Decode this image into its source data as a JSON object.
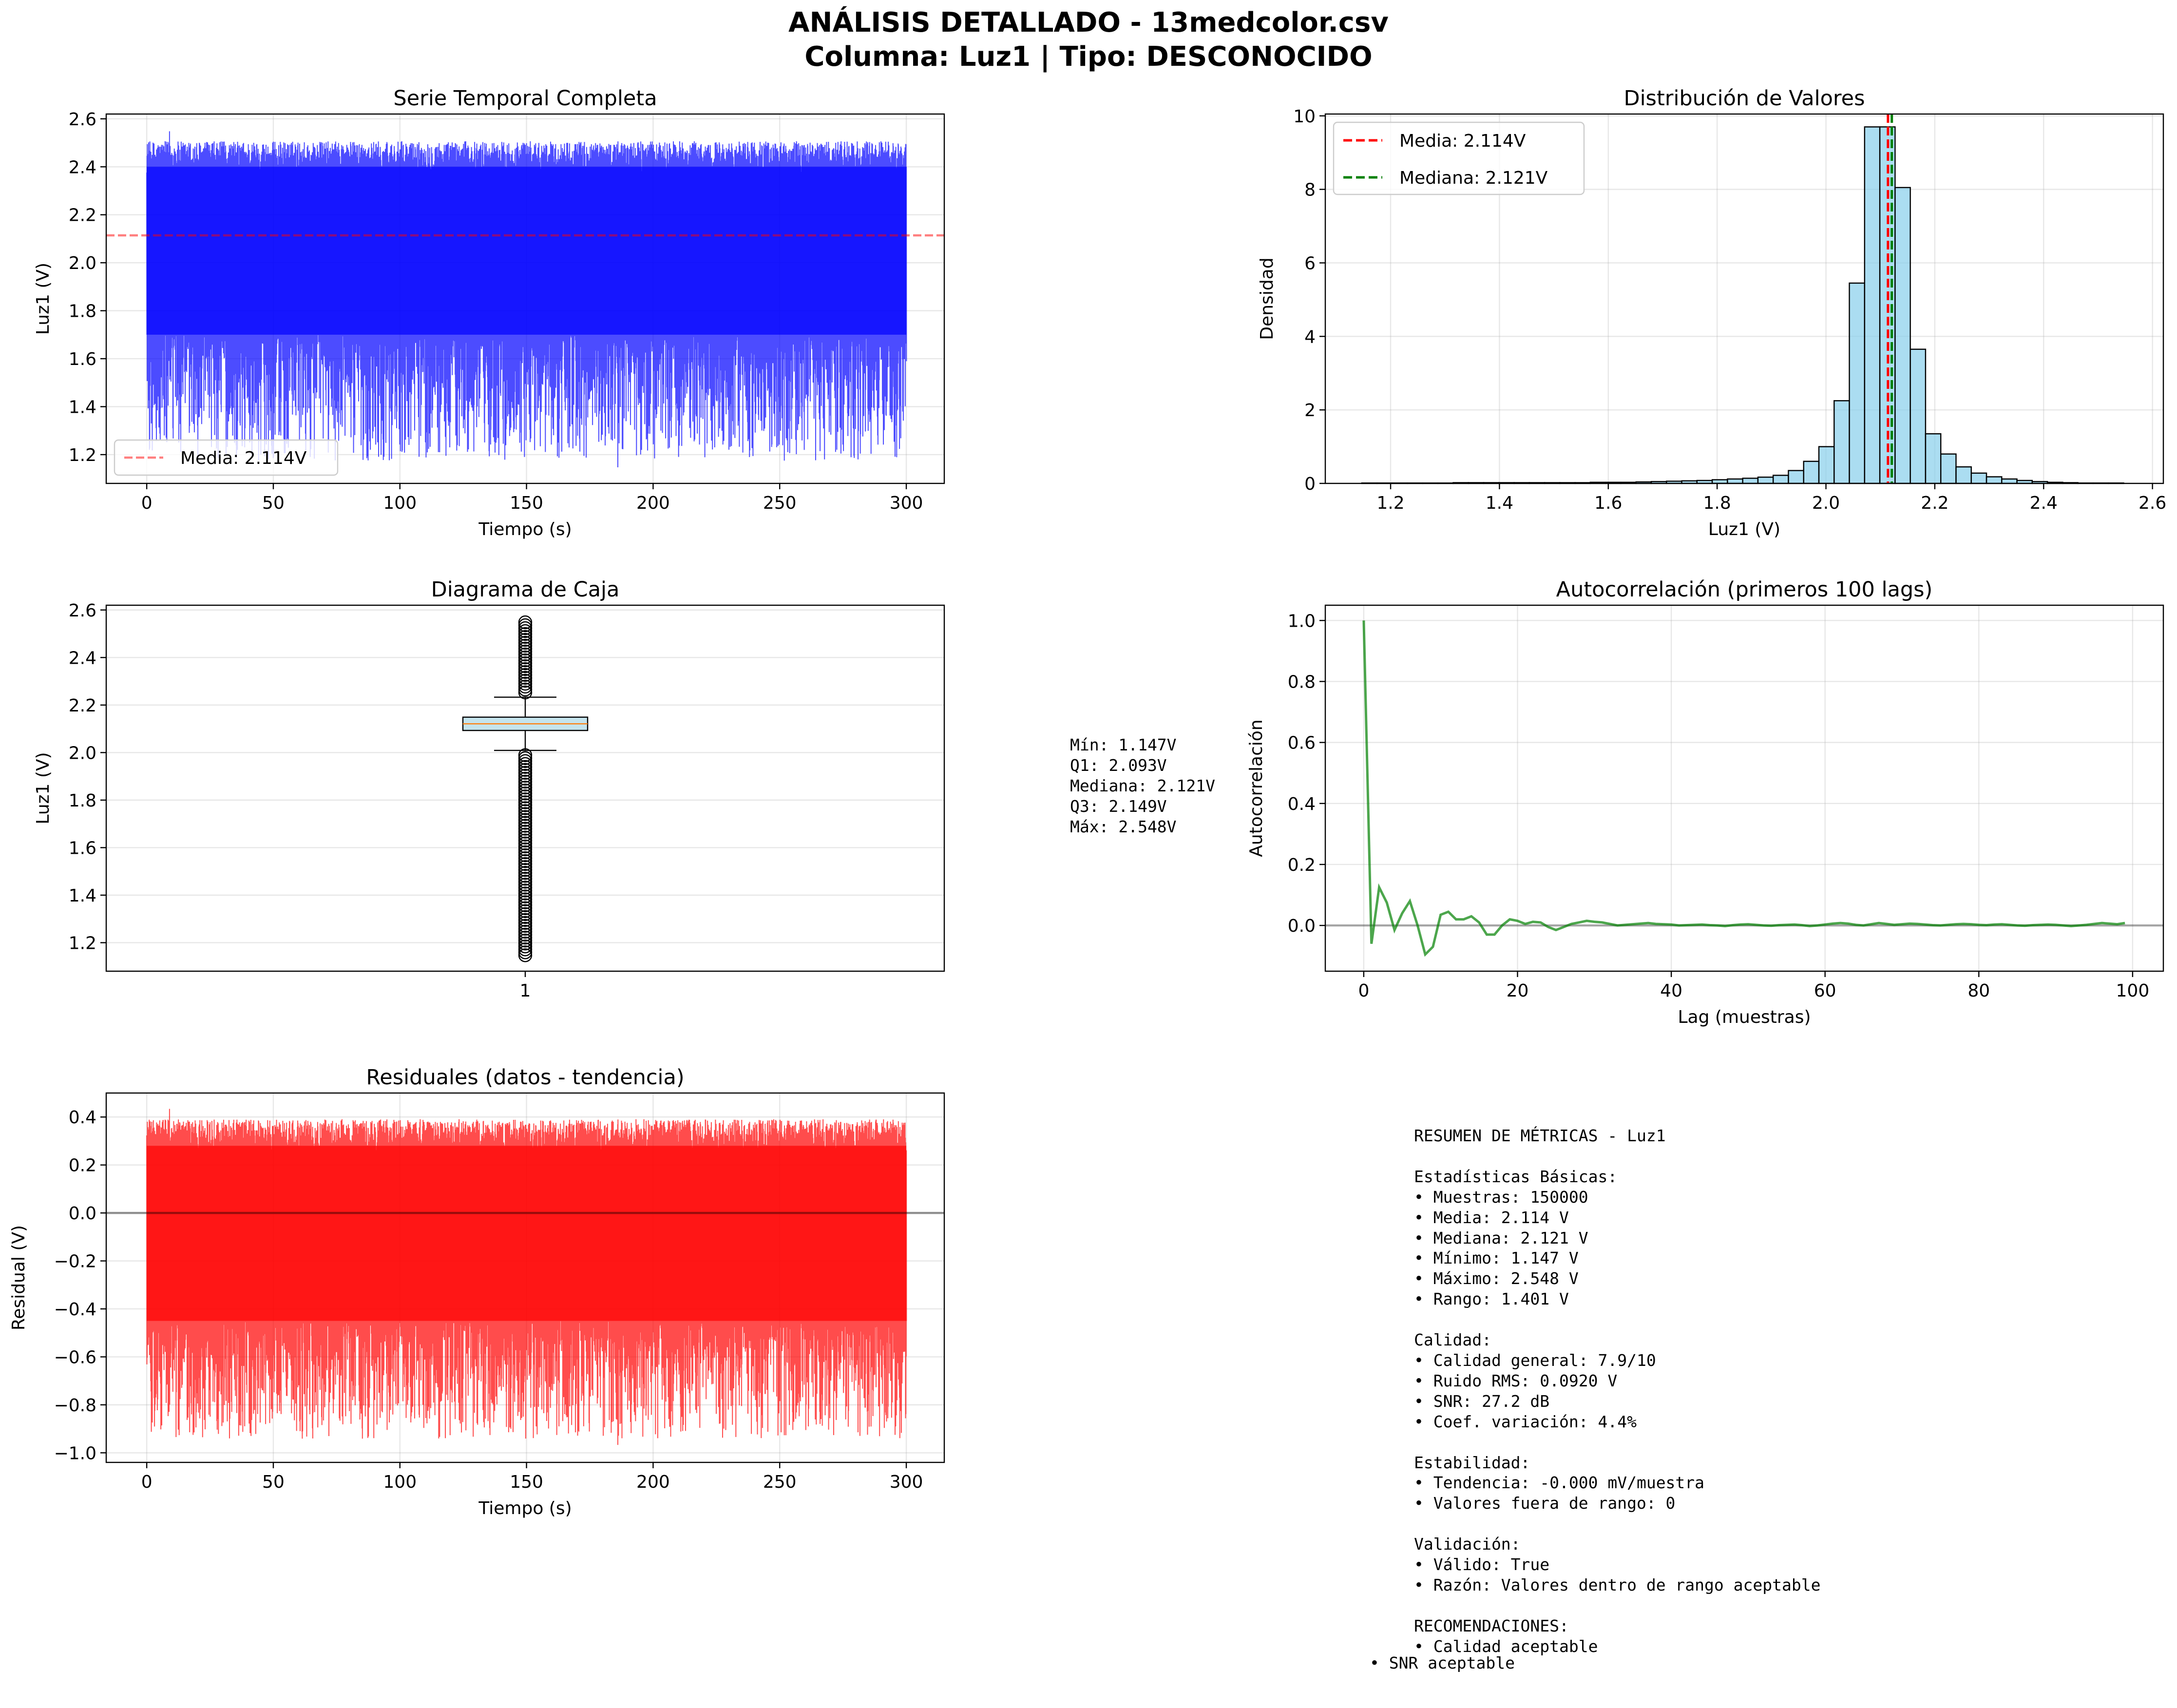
{
  "figure": {
    "title_line1": "ANÁLISIS DETALLADO - 13medcolor.csv",
    "title_line2": "Columna: Luz1 | Tipo: DESCONOCIDO"
  },
  "chart_data": [
    {
      "id": "timeseries",
      "type": "line",
      "title": "Serie Temporal Completa",
      "xlabel": "Tiempo (s)",
      "ylabel": "Luz1 (V)",
      "xlim": [
        -16,
        315
      ],
      "ylim": [
        1.08,
        2.62
      ],
      "xticks": [
        0,
        50,
        100,
        150,
        200,
        250,
        300
      ],
      "yticks": [
        1.2,
        1.4,
        1.6,
        1.8,
        2.0,
        2.2,
        2.4,
        2.6
      ],
      "series": [
        {
          "color": "#0000ff",
          "x_range": [
            0,
            300
          ],
          "typical_low": 1.7,
          "typical_high": 2.4,
          "min": 1.147,
          "max": 2.548
        }
      ],
      "reference_line": {
        "y": 2.114,
        "color": "#ff0000"
      },
      "legend": {
        "position": "lower-left",
        "entries": [
          "Media: 2.114V"
        ]
      },
      "grid": true
    },
    {
      "id": "histogram",
      "type": "bar",
      "title": "Distribución de Valores",
      "xlabel": "Luz1 (V)",
      "ylabel": "Densidad",
      "xlim": [
        1.08,
        2.62
      ],
      "ylim": [
        0,
        10.05
      ],
      "xticks": [
        1.2,
        1.4,
        1.6,
        1.8,
        2.0,
        2.2,
        2.4,
        2.6
      ],
      "yticks": [
        0,
        2,
        4,
        6,
        8,
        10
      ],
      "bin_start": 1.147,
      "bin_width": 0.028,
      "bar_color": "#87ceeb",
      "values": [
        0.01,
        0.01,
        0.01,
        0.01,
        0.01,
        0.01,
        0.02,
        0.02,
        0.02,
        0.02,
        0.02,
        0.02,
        0.02,
        0.02,
        0.02,
        0.03,
        0.03,
        0.03,
        0.04,
        0.05,
        0.06,
        0.07,
        0.08,
        0.1,
        0.12,
        0.14,
        0.17,
        0.22,
        0.35,
        0.6,
        1.0,
        2.25,
        5.45,
        9.7,
        9.7,
        8.05,
        3.65,
        1.35,
        0.8,
        0.45,
        0.28,
        0.18,
        0.12,
        0.08,
        0.05,
        0.03,
        0.02,
        0.01,
        0.01,
        0.01
      ],
      "lines": [
        {
          "x": 2.114,
          "color": "#ff0000",
          "label": "Media: 2.114V"
        },
        {
          "x": 2.121,
          "color": "#008000",
          "label": "Mediana: 2.121V"
        }
      ],
      "legend": {
        "position": "top-left",
        "entries": [
          "Media: 2.114V",
          "Mediana: 2.121V"
        ]
      },
      "grid": true
    },
    {
      "id": "boxplot",
      "type": "box",
      "title": "Diagrama de Caja",
      "ylabel": "Luz1 (V)",
      "xlim": [
        0.5,
        1.5
      ],
      "ylim": [
        1.08,
        2.62
      ],
      "xticks": [
        1
      ],
      "yticks": [
        1.2,
        1.4,
        1.6,
        1.8,
        2.0,
        2.2,
        2.4,
        2.6
      ],
      "q1": 2.093,
      "median": 2.121,
      "q3": 2.149,
      "whisker_low": 2.009,
      "whisker_high": 2.233,
      "outliers_low": [
        1.147,
        2.009
      ],
      "outliers_high": [
        2.233,
        2.548
      ],
      "grid": true
    },
    {
      "id": "autocorr",
      "type": "line",
      "title": "Autocorrelación (primeros 100 lags)",
      "xlabel": "Lag (muestras)",
      "ylabel": "Autocorrelación",
      "xlim": [
        -5,
        104
      ],
      "ylim": [
        -0.15,
        1.05
      ],
      "xticks": [
        0,
        20,
        40,
        60,
        80,
        100
      ],
      "yticks": [
        0.0,
        0.2,
        0.4,
        0.6,
        0.8,
        1.0
      ],
      "color": "#008000",
      "values": [
        1.0,
        -0.06,
        0.125,
        0.075,
        -0.015,
        0.04,
        0.08,
        0.0,
        -0.095,
        -0.07,
        0.035,
        0.045,
        0.02,
        0.02,
        0.03,
        0.01,
        -0.03,
        -0.03,
        0.0,
        0.02,
        0.015,
        0.005,
        0.012,
        0.01,
        -0.005,
        -0.015,
        -0.005,
        0.005,
        0.01,
        0.015,
        0.012,
        0.01,
        0.005,
        0.0,
        0.002,
        0.004,
        0.006,
        0.008,
        0.005,
        0.004,
        0.003,
        0.0,
        0.001,
        0.002,
        0.003,
        0.001,
        0.0,
        -0.002,
        0.001,
        0.003,
        0.004,
        0.002,
        0.0,
        -0.001,
        0.001,
        0.002,
        0.003,
        0.001,
        -0.002,
        0.0,
        0.003,
        0.006,
        0.008,
        0.006,
        0.002,
        0.0,
        0.004,
        0.008,
        0.005,
        0.002,
        0.004,
        0.006,
        0.005,
        0.003,
        0.001,
        0.0,
        0.002,
        0.004,
        0.005,
        0.004,
        0.002,
        0.001,
        0.003,
        0.004,
        0.002,
        0.0,
        -0.001,
        0.001,
        0.002,
        0.003,
        0.002,
        0.0,
        -0.002,
        0.0,
        0.002,
        0.005,
        0.008,
        0.006,
        0.004,
        0.008
      ],
      "reference_line": {
        "y": 0.0,
        "color": "#000000"
      },
      "grid": true
    },
    {
      "id": "residuals",
      "type": "line",
      "title": "Residuales (datos - tendencia)",
      "xlabel": "Tiempo (s)",
      "ylabel": "Residual (V)",
      "xlim": [
        -16,
        315
      ],
      "ylim": [
        -1.04,
        0.5
      ],
      "xticks": [
        0,
        50,
        100,
        150,
        200,
        250,
        300
      ],
      "yticks": [
        -1.0,
        -0.8,
        -0.6,
        -0.4,
        -0.2,
        0.0,
        0.2,
        0.4
      ],
      "series": [
        {
          "color": "#ff0000",
          "x_range": [
            0,
            300
          ],
          "typical_low": -0.45,
          "typical_high": 0.28,
          "min": -0.967,
          "max": 0.434
        }
      ],
      "reference_line": {
        "y": 0.0,
        "color": "#000000"
      },
      "grid": true
    }
  ],
  "box_stats_text": {
    "min": "Mín: 1.147V",
    "q1": "Q1: 2.093V",
    "median": "Mediana: 2.121V",
    "q3": "Q3: 2.149V",
    "max": "Máx: 2.548V"
  },
  "summary_text": "RESUMEN DE MÉTRICAS - Luz1\n\nEstadísticas Básicas:\n• Muestras: 150000\n• Media: 2.114 V\n• Mediana: 2.121 V\n• Mínimo: 1.147 V\n• Máximo: 2.548 V\n• Rango: 1.401 V\n\nCalidad:\n• Calidad general: 7.9/10\n• Ruido RMS: 0.0920 V\n• SNR: 27.2 dB\n• Coef. variación: 4.4%\n\nEstabilidad:\n• Tendencia: -0.000 mV/muestra\n• Valores fuera de rango: 0\n\nValidación:\n• Válido: True\n• Razón: Valores dentro de rango aceptable\n\nRECOMENDACIONES:\n• Calidad aceptable",
  "summary_last_line": "• SNR aceptable"
}
